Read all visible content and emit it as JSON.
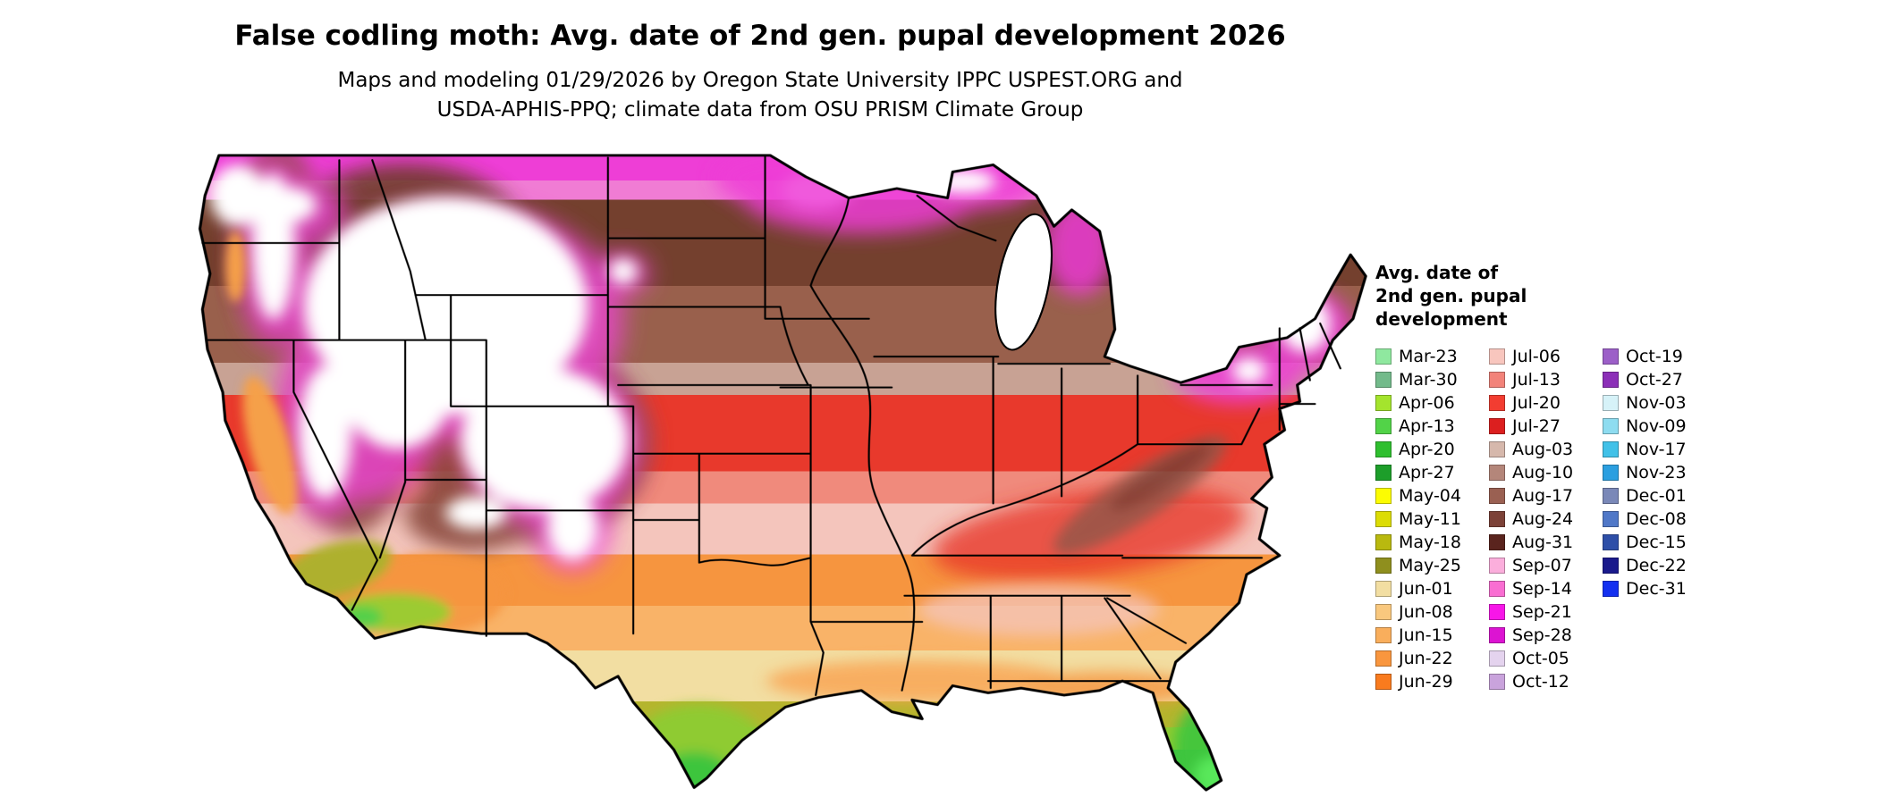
{
  "header": {
    "title": "False codling moth: Avg. date of 2nd gen. pupal development 2026",
    "subtitle_line1": "Maps and modeling 01/29/2026 by Oregon State University IPPC USPEST.ORG and",
    "subtitle_line2": "USDA-APHIS-PPQ; climate data from OSU PRISM Climate Group"
  },
  "legend": {
    "title_lines": [
      "Avg. date of",
      "2nd gen. pupal",
      "development"
    ],
    "columns": [
      [
        {
          "label": "Mar-23",
          "color": "#8FE89F"
        },
        {
          "label": "Mar-30",
          "color": "#73BA8B"
        },
        {
          "label": "Apr-06",
          "color": "#A4E42D"
        },
        {
          "label": "Apr-13",
          "color": "#52D348"
        },
        {
          "label": "Apr-20",
          "color": "#2FBF2F"
        },
        {
          "label": "Apr-27",
          "color": "#1D9E2A"
        },
        {
          "label": "May-04",
          "color": "#FCFC02"
        },
        {
          "label": "May-11",
          "color": "#DCDC04"
        },
        {
          "label": "May-18",
          "color": "#B9B90F"
        },
        {
          "label": "May-25",
          "color": "#8F8F1E"
        },
        {
          "label": "Jun-01",
          "color": "#F2DEA2"
        },
        {
          "label": "Jun-08",
          "color": "#F9C87E"
        },
        {
          "label": "Jun-15",
          "color": "#F9AE5C"
        },
        {
          "label": "Jun-22",
          "color": "#F9963E"
        },
        {
          "label": "Jun-29",
          "color": "#F97B1E"
        }
      ],
      [
        {
          "label": "Jul-06",
          "color": "#F8C6BE"
        },
        {
          "label": "Jul-13",
          "color": "#F2837A"
        },
        {
          "label": "Jul-20",
          "color": "#F23D31"
        },
        {
          "label": "Jul-27",
          "color": "#DC1F1F"
        },
        {
          "label": "Aug-03",
          "color": "#D6B8AC"
        },
        {
          "label": "Aug-10",
          "color": "#B4867A"
        },
        {
          "label": "Aug-17",
          "color": "#9A6052"
        },
        {
          "label": "Aug-24",
          "color": "#7C4238"
        },
        {
          "label": "Aug-31",
          "color": "#5A241E"
        },
        {
          "label": "Sep-07",
          "color": "#FBAEDC"
        },
        {
          "label": "Sep-14",
          "color": "#F96ED2"
        },
        {
          "label": "Sep-21",
          "color": "#F716E8"
        },
        {
          "label": "Sep-28",
          "color": "#DC14D2"
        },
        {
          "label": "Oct-05",
          "color": "#E4D3EE"
        },
        {
          "label": "Oct-12",
          "color": "#C9A3DC"
        }
      ],
      [
        {
          "label": "Oct-19",
          "color": "#9C5FC8"
        },
        {
          "label": "Oct-27",
          "color": "#8C2FB8"
        },
        {
          "label": "Nov-03",
          "color": "#D6F2F8"
        },
        {
          "label": "Nov-09",
          "color": "#8EDCF0"
        },
        {
          "label": "Nov-17",
          "color": "#41C1E8"
        },
        {
          "label": "Nov-23",
          "color": "#2B9FE0"
        },
        {
          "label": "Dec-01",
          "color": "#7A88B8"
        },
        {
          "label": "Dec-08",
          "color": "#5078C8"
        },
        {
          "label": "Dec-15",
          "color": "#2E4FA8"
        },
        {
          "label": "Dec-22",
          "color": "#1A1A8C"
        },
        {
          "label": "Dec-31",
          "color": "#1430F0"
        }
      ]
    ]
  },
  "map": {
    "outline_color": "#000000",
    "no_data_color": "#FFFFFF",
    "background_color": "#FFFFFF"
  }
}
